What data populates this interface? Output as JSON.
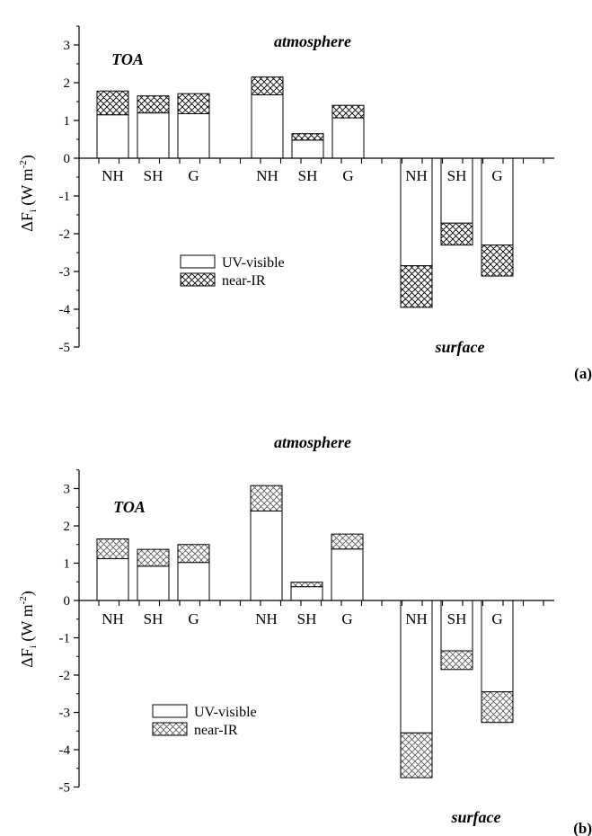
{
  "chart_data": [
    {
      "type": "bar",
      "stacked": true,
      "panel_label": "(a)",
      "ylabel": "ΔF",
      "ylabel_sub": "i",
      "ylabel_unit": " (W m",
      "ylabel_sup": "-2",
      "ylabel_close": ")",
      "ylim": [
        -5,
        3.5
      ],
      "yticks": [
        3,
        2,
        1,
        0,
        -1,
        -2,
        -3,
        -4,
        -5
      ],
      "legend": [
        {
          "name": "UV-visible",
          "pattern": "none"
        },
        {
          "name": "near-IR",
          "pattern": "crosshatch"
        }
      ],
      "groups": [
        {
          "name": "TOA",
          "categories": [
            "NH",
            "SH",
            "G"
          ],
          "uv_visible": [
            1.15,
            1.2,
            1.18
          ],
          "near_ir": [
            0.63,
            0.45,
            0.53
          ]
        },
        {
          "name": "atmosphere",
          "categories": [
            "NH",
            "SH",
            "G"
          ],
          "uv_visible": [
            1.68,
            0.48,
            1.07
          ],
          "near_ir": [
            0.47,
            0.17,
            0.33
          ]
        },
        {
          "name": "surface",
          "categories": [
            "NH",
            "SH",
            "G"
          ],
          "uv_visible": [
            -2.85,
            -1.72,
            -2.3
          ],
          "near_ir": [
            -1.1,
            -0.58,
            -0.82
          ]
        }
      ]
    },
    {
      "type": "bar",
      "stacked": true,
      "panel_label": "(b)",
      "ylabel": "ΔF",
      "ylabel_sub": "i",
      "ylabel_unit": " (W m",
      "ylabel_sup": "-2",
      "ylabel_close": ")",
      "ylim": [
        -5,
        3.5
      ],
      "yticks": [
        3,
        2,
        1,
        0,
        -1,
        -2,
        -3,
        -4,
        -5
      ],
      "legend": [
        {
          "name": "UV-visible",
          "pattern": "none"
        },
        {
          "name": "near-IR",
          "pattern": "crosshatch"
        }
      ],
      "groups": [
        {
          "name": "TOA",
          "categories": [
            "NH",
            "SH",
            "G"
          ],
          "uv_visible": [
            1.12,
            0.92,
            1.02
          ],
          "near_ir": [
            0.53,
            0.45,
            0.48
          ]
        },
        {
          "name": "atmosphere",
          "categories": [
            "NH",
            "SH",
            "G"
          ],
          "uv_visible": [
            2.4,
            0.37,
            1.38
          ],
          "near_ir": [
            0.68,
            0.12,
            0.4
          ]
        },
        {
          "name": "surface",
          "categories": [
            "NH",
            "SH",
            "G"
          ],
          "uv_visible": [
            -3.55,
            -1.35,
            -2.45
          ],
          "near_ir": [
            -1.2,
            -0.5,
            -0.82
          ]
        }
      ]
    }
  ]
}
